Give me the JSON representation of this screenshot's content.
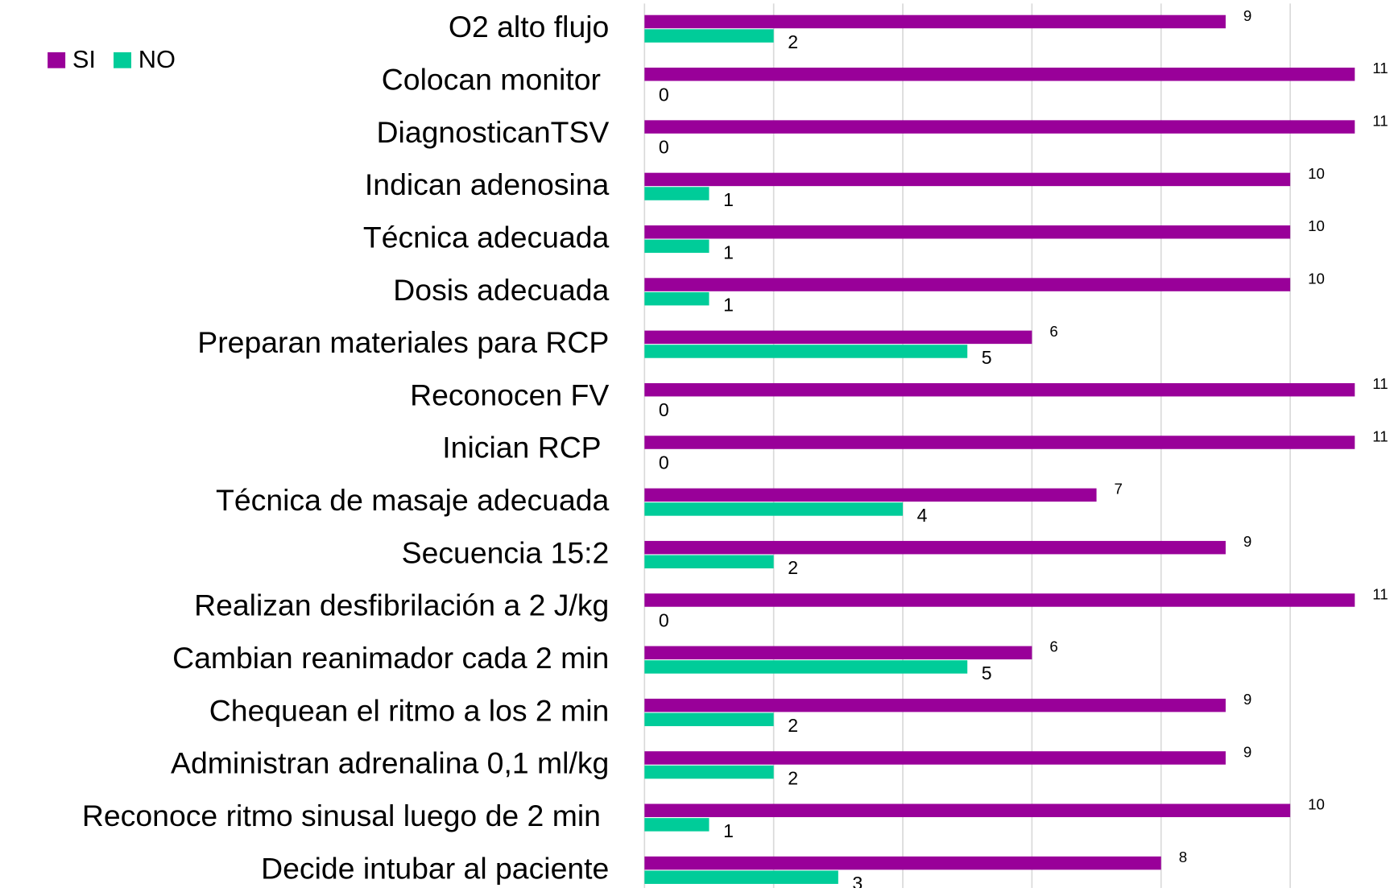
{
  "chart_data": {
    "type": "bar",
    "orientation": "horizontal",
    "categories": [
      "O2 alto flujo",
      "Colocan monitor ",
      "DiagnosticanTSV",
      "Indican adenosina",
      "Técnica adecuada",
      "Dosis adecuada",
      "Preparan materiales para RCP",
      "Reconocen FV",
      "Inician RCP ",
      "Técnica de masaje adecuada",
      "Secuencia 15:2",
      "Realizan desfibrilación a 2 J/kg",
      "Cambian reanimador cada 2 min",
      "Chequean el ritmo a los 2 min",
      "Administran adrenalina 0,1 ml/kg",
      "Reconoce ritmo sinusal luego de 2 min ",
      "Decide intubar al paciente"
    ],
    "series": [
      {
        "name": "SI",
        "color": "#990099",
        "values": [
          9,
          11,
          11,
          10,
          10,
          10,
          6,
          11,
          11,
          7,
          9,
          11,
          6,
          9,
          9,
          10,
          8
        ]
      },
      {
        "name": "NO",
        "color": "#00cc99",
        "values": [
          2,
          0,
          0,
          1,
          1,
          1,
          5,
          0,
          0,
          4,
          2,
          0,
          5,
          2,
          2,
          1,
          3
        ]
      }
    ],
    "xlim": [
      0,
      11
    ],
    "xticks": [
      0,
      2,
      4,
      6,
      8,
      10
    ],
    "grid": true,
    "legend": "top-left"
  }
}
